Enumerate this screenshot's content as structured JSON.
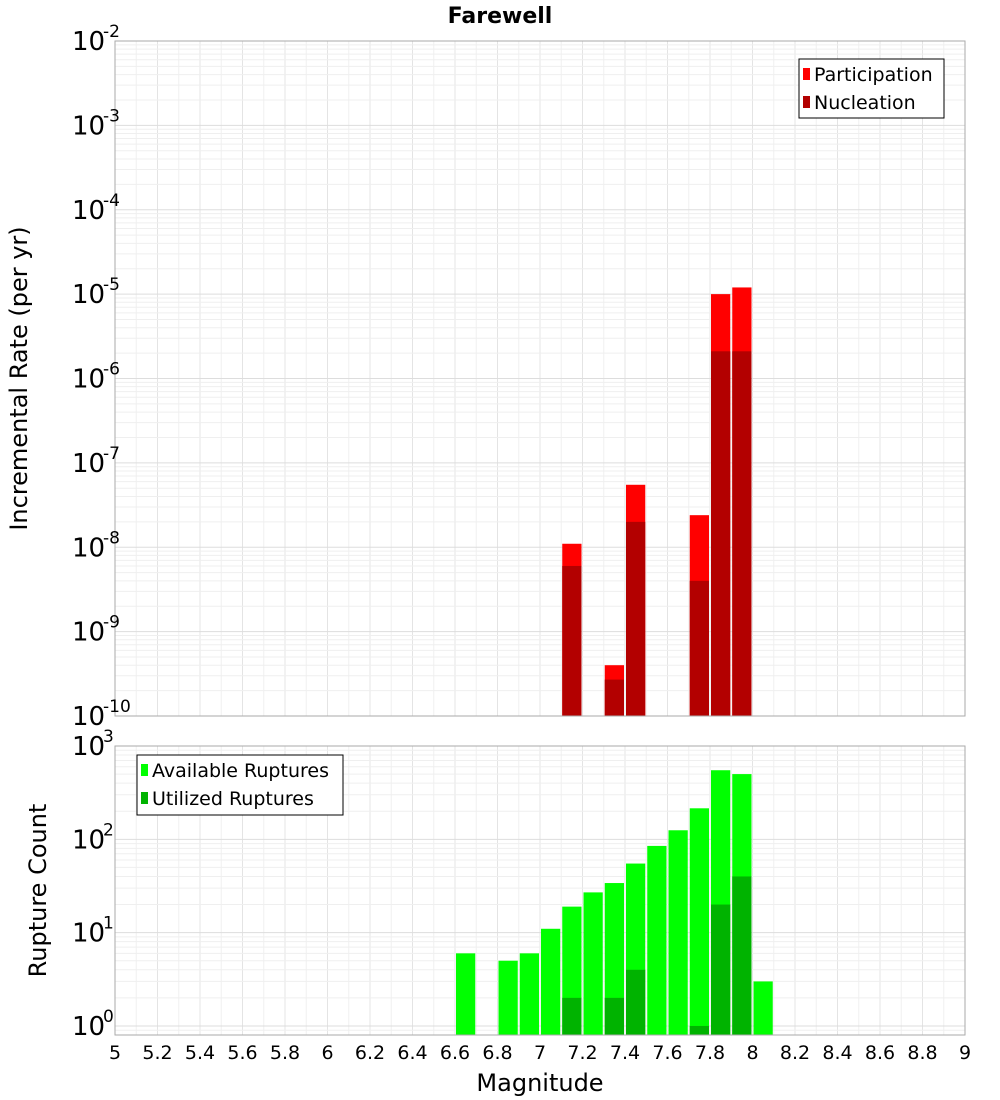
{
  "chart_data": {
    "title": "Farewell",
    "xlabel": "Magnitude",
    "x_ticks": [
      "5",
      "5.2",
      "5.4",
      "5.6",
      "5.8",
      "6",
      "6.2",
      "6.4",
      "6.6",
      "6.8",
      "7",
      "7.2",
      "7.4",
      "7.6",
      "7.8",
      "8",
      "8.2",
      "8.4",
      "8.6",
      "8.8",
      "9"
    ],
    "xlim": [
      5,
      9
    ],
    "bin_width": 0.1,
    "colors": {
      "participation": "#ff0000",
      "nucleation": "#b30000",
      "available": "#00ff00",
      "utilized": "#00b300"
    },
    "panels": [
      {
        "type": "bar",
        "ylabel": "Incremental Rate (per yr)",
        "y_scale": "log",
        "ylim": [
          1e-10,
          0.01
        ],
        "y_tick_exponents": [
          "-10",
          "-9",
          "-8",
          "-7",
          "-6",
          "-5",
          "-4",
          "-3",
          "-2"
        ],
        "legend_position": "top-right",
        "series": [
          {
            "name": "Participation",
            "x": [
              7.15,
              7.35,
              7.45,
              7.75,
              7.85,
              7.95
            ],
            "values": [
              1.1e-08,
              4e-10,
              5.5e-08,
              2.4e-08,
              1e-05,
              1.2e-05
            ]
          },
          {
            "name": "Nucleation",
            "x": [
              7.15,
              7.35,
              7.45,
              7.75,
              7.85,
              7.95
            ],
            "values": [
              6e-09,
              2.7e-10,
              2e-08,
              4e-09,
              2.1e-06,
              2.1e-06
            ]
          }
        ]
      },
      {
        "type": "bar",
        "ylabel": "Rupture Count",
        "y_scale": "log",
        "ylim": [
          0.8,
          1000
        ],
        "y_tick_exponents": [
          "0",
          "1",
          "2",
          "3"
        ],
        "legend_position": "top-left",
        "series": [
          {
            "name": "Available Ruptures",
            "x": [
              6.65,
              6.85,
              6.95,
              7.05,
              7.15,
              7.25,
              7.35,
              7.45,
              7.55,
              7.65,
              7.75,
              7.85,
              7.95,
              8.05
            ],
            "values": [
              6,
              5,
              6,
              11,
              19,
              27,
              34,
              55,
              85,
              125,
              215,
              550,
              500,
              3
            ]
          },
          {
            "name": "Utilized Ruptures",
            "x": [
              7.15,
              7.35,
              7.45,
              7.75,
              7.85,
              7.95
            ],
            "values": [
              2,
              2,
              4,
              1,
              20,
              40
            ]
          }
        ]
      }
    ]
  }
}
